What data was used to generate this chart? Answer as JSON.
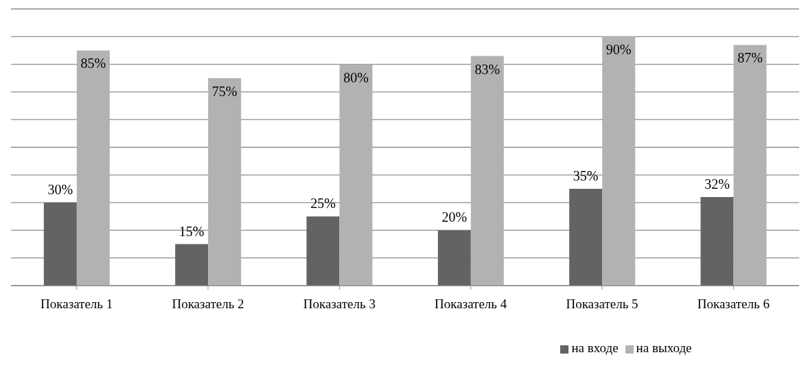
{
  "chart_data": {
    "type": "bar",
    "categories": [
      "Показатель 1",
      "Показатель 2",
      "Показатель 3",
      "Показатель 4",
      "Показатель 5",
      "Показатель 6"
    ],
    "series": [
      {
        "name": "на входе",
        "color": "#636363",
        "values": [
          30,
          15,
          25,
          20,
          35,
          32
        ],
        "value_labels": [
          "30%",
          "15%",
          "25%",
          "20%",
          "35%",
          "32%"
        ]
      },
      {
        "name": "на выходе",
        "color": "#b2b2b2",
        "values": [
          85,
          75,
          80,
          83,
          90,
          87
        ],
        "value_labels": [
          "85%",
          "75%",
          "80%",
          "83%",
          "90%",
          "87%"
        ]
      }
    ],
    "ylim": [
      0,
      100
    ],
    "yticks": [
      {
        "value": 0,
        "label": null
      },
      {
        "value": 10,
        "label": null
      },
      {
        "value": 20,
        "label": null
      },
      {
        "value": 30,
        "label": null
      },
      {
        "value": 40,
        "label": null
      },
      {
        "value": 50,
        "label": null
      },
      {
        "value": 60,
        "label": null
      },
      {
        "value": 70,
        "label": null
      },
      {
        "value": 80,
        "label": null
      },
      {
        "value": 90,
        "label": null
      },
      {
        "value": 100,
        "label": null
      }
    ],
    "tick_labels": "x",
    "grid": "y",
    "legend": "bottom"
  }
}
